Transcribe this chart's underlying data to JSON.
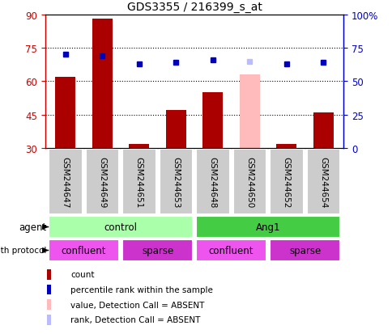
{
  "title": "GDS3355 / 216399_s_at",
  "samples": [
    "GSM244647",
    "GSM244649",
    "GSM244651",
    "GSM244653",
    "GSM244648",
    "GSM244650",
    "GSM244652",
    "GSM244654"
  ],
  "bar_values": [
    62,
    88,
    32,
    47,
    55,
    63,
    32,
    46
  ],
  "bar_absent": [
    false,
    false,
    false,
    false,
    false,
    true,
    false,
    false
  ],
  "rank_values": [
    70,
    69,
    63,
    64,
    66,
    65,
    63,
    64
  ],
  "rank_absent": [
    false,
    false,
    false,
    false,
    false,
    true,
    false,
    false
  ],
  "ylim_left": [
    30,
    90
  ],
  "ylim_right": [
    0,
    100
  ],
  "yticks_left": [
    30,
    45,
    60,
    75,
    90
  ],
  "yticks_right": [
    0,
    25,
    50,
    75,
    100
  ],
  "ytick_labels_right": [
    "0",
    "25",
    "50",
    "75",
    "100%"
  ],
  "bar_color": "#aa0000",
  "bar_absent_color": "#ffbbbb",
  "rank_color": "#0000bb",
  "rank_absent_color": "#bbbbff",
  "agent_control_color": "#aaffaa",
  "agent_ang1_color": "#44cc44",
  "growth_confluent_color": "#ee55ee",
  "growth_sparse_color": "#cc33cc",
  "legend_items": [
    {
      "color": "#aa0000",
      "label": "count"
    },
    {
      "color": "#0000bb",
      "label": "percentile rank within the sample"
    },
    {
      "color": "#ffbbbb",
      "label": "value, Detection Call = ABSENT"
    },
    {
      "color": "#bbbbff",
      "label": "rank, Detection Call = ABSENT"
    }
  ],
  "ylabel_left_color": "#cc0000",
  "ylabel_right_color": "#0000cc",
  "fig_width": 4.85,
  "fig_height": 4.14,
  "dpi": 100
}
